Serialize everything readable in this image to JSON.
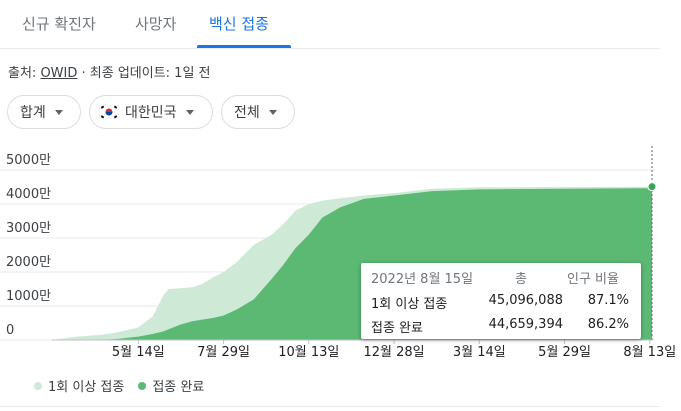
{
  "tabs": [
    {
      "label": "신규 확진자",
      "active": false
    },
    {
      "label": "사망자",
      "active": false
    },
    {
      "label": "백신 접종",
      "active": true
    }
  ],
  "source": {
    "prefix": "출처: ",
    "name": "OWID",
    "suffix": " · 최종 업데이트: 1일 전"
  },
  "filters": {
    "aggregate": "합계",
    "country": "대한민국",
    "range": "전체"
  },
  "chart_data": {
    "type": "area",
    "y_ticks": [
      "5000만",
      "4000만",
      "3000만",
      "2000만",
      "1000만",
      "0"
    ],
    "y_tick_values": [
      50000000,
      40000000,
      30000000,
      20000000,
      10000000,
      0
    ],
    "ylim": [
      0,
      50000000
    ],
    "x_ticks": [
      "5월 14일",
      "7월 29일",
      "10월 13일",
      "12월 28일",
      "3월 14일",
      "5월 29일",
      "8월 13일"
    ],
    "x_tick_values": [
      "2021-05-14",
      "2021-07-29",
      "2021-10-13",
      "2021-12-28",
      "2022-03-14",
      "2022-05-29",
      "2022-08-13"
    ],
    "series": [
      {
        "name": "1회 이상 접종",
        "color": "#ceead6",
        "x": [
          "2021-02-26",
          "2021-03-20",
          "2021-04-10",
          "2021-04-25",
          "2021-05-14",
          "2021-05-27",
          "2021-06-05",
          "2021-06-10",
          "2021-06-20",
          "2021-07-01",
          "2021-07-10",
          "2021-07-20",
          "2021-07-29",
          "2021-08-10",
          "2021-08-25",
          "2021-09-10",
          "2021-09-20",
          "2021-10-01",
          "2021-10-13",
          "2021-10-25",
          "2021-11-10",
          "2021-12-01",
          "2021-12-28",
          "2022-01-31",
          "2022-03-14",
          "2022-05-29",
          "2022-08-15"
        ],
        "values": [
          0,
          1000000,
          1500000,
          2200000,
          3700000,
          7000000,
          13000000,
          15000000,
          15200000,
          15500000,
          16500000,
          18500000,
          20000000,
          23000000,
          28000000,
          31000000,
          34000000,
          38000000,
          40000000,
          41000000,
          41700000,
          42500000,
          43200000,
          44500000,
          44900000,
          45000000,
          45096088
        ]
      },
      {
        "name": "접종 완료",
        "color": "#5bb974",
        "x": [
          "2021-02-26",
          "2021-04-10",
          "2021-04-25",
          "2021-05-14",
          "2021-05-27",
          "2021-06-05",
          "2021-06-20",
          "2021-07-01",
          "2021-07-10",
          "2021-07-20",
          "2021-07-29",
          "2021-08-10",
          "2021-08-25",
          "2021-09-10",
          "2021-09-20",
          "2021-10-01",
          "2021-10-13",
          "2021-10-25",
          "2021-11-10",
          "2021-12-01",
          "2021-12-28",
          "2022-01-31",
          "2022-03-14",
          "2022-05-29",
          "2022-08-15"
        ],
        "values": [
          0,
          100000,
          300000,
          1000000,
          1800000,
          2500000,
          4500000,
          5500000,
          6000000,
          6500000,
          7200000,
          9000000,
          12000000,
          18000000,
          22000000,
          27000000,
          31000000,
          36000000,
          39000000,
          41500000,
          42500000,
          43800000,
          44300000,
          44500000,
          44659394
        ]
      }
    ],
    "tooltip": {
      "date": "2022년 8월 15일",
      "col_total": "총",
      "col_ratio": "인구 비율",
      "rows": [
        {
          "label": "1회 이상 접종",
          "total": "45,096,088",
          "ratio": "87.1%"
        },
        {
          "label": "접종 완료",
          "total": "44,659,394",
          "ratio": "86.2%"
        }
      ]
    }
  },
  "legend": [
    {
      "label": "1회 이상 접종",
      "color": "#ceead6"
    },
    {
      "label": "접종 완료",
      "color": "#5bb974"
    }
  ]
}
